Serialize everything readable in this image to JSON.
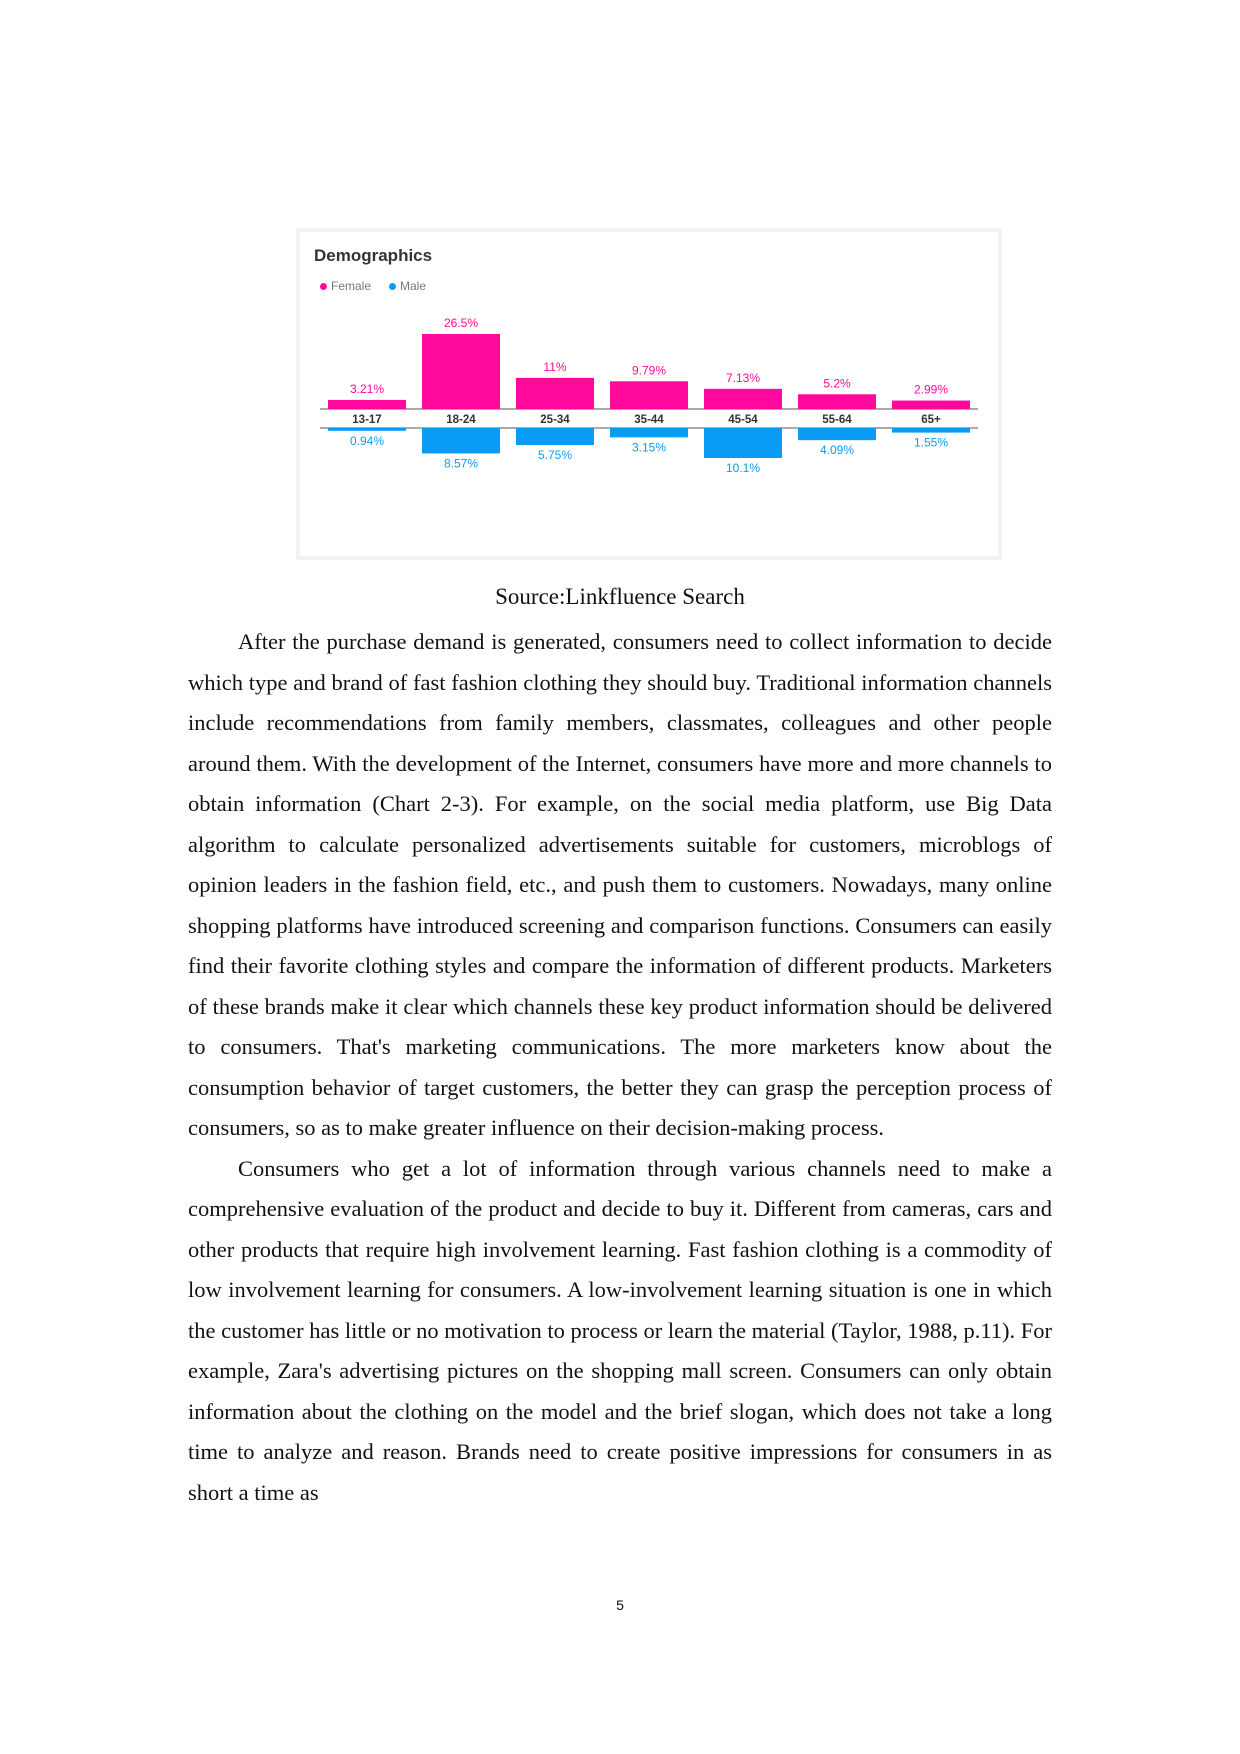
{
  "chart_data": {
    "type": "bar",
    "title": "Demographics",
    "categories": [
      "13-17",
      "18-24",
      "25-34",
      "35-44",
      "45-54",
      "55-64",
      "65+"
    ],
    "series": [
      {
        "name": "Female",
        "values": [
          3.21,
          26.5,
          11,
          9.79,
          7.13,
          5.2,
          2.99
        ],
        "labels": [
          "3.21%",
          "26.5%",
          "11%",
          "9.79%",
          "7.13%",
          "5.2%",
          "2.99%"
        ],
        "color": "#ff0a9c",
        "direction": "up"
      },
      {
        "name": "Male",
        "values": [
          0.94,
          8.57,
          5.75,
          3.15,
          10.1,
          4.09,
          1.55
        ],
        "labels": [
          "0.94%",
          "8.57%",
          "5.75%",
          "3.15%",
          "10.1%",
          "4.09%",
          "1.55%"
        ],
        "color": "#0a9cf4",
        "direction": "down"
      }
    ],
    "legend": "top-left",
    "grid": false
  },
  "caption": "Source:Linkfluence Search",
  "paragraphs": [
    "After the purchase demand is generated, consumers need to collect information to decide which type and brand of fast fashion clothing they should buy. Traditional information channels include recommendations from family members, classmates, colleagues and other people around them. With the development of the Internet, consumers have more and more channels to obtain information (Chart 2-3). For example, on the social media platform, use Big Data algorithm to calculate personalized advertisements suitable for customers, microblogs of opinion leaders in the fashion field, etc., and push them to customers. Nowadays, many online shopping platforms have introduced screening and comparison functions. Consumers can easily find their favorite clothing styles and compare the information of different products. Marketers of these brands make it clear which channels these key product information should be delivered to consumers. That's marketing communications. The more marketers know about the consumption behavior of target customers, the better they can grasp the perception process of consumers, so as to make greater influence on their decision-making process.",
    "Consumers who get a lot of information through various channels need to make a comprehensive evaluation of the product and decide to buy it. Different from cameras, cars and other products that require high involvement learning. Fast fashion clothing is a commodity of low involvement learning for consumers. A low-involvement learning situation is one in which the customer has little or no motivation to process or learn the material (Taylor, 1988, p.11). For example, Zara's advertising pictures on the shopping mall screen. Consumers can only obtain information about the clothing on the model and the brief slogan, which does not take a long time to analyze and reason. Brands need to create positive impressions for consumers in as short a time as"
  ],
  "page_number": "5"
}
